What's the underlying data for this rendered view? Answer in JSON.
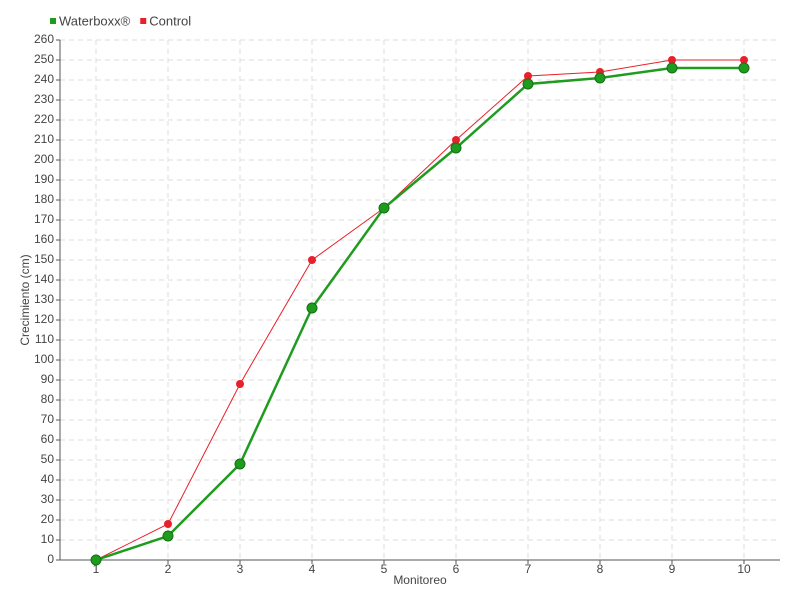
{
  "chart_data": {
    "type": "line",
    "x_label": "Monitoreo",
    "y_label": "Crecimiento (cm)",
    "x": [
      1,
      2,
      3,
      4,
      5,
      6,
      7,
      8,
      9,
      10
    ],
    "xlim": [
      0.5,
      10.5
    ],
    "xticks": [
      1,
      2,
      3,
      4,
      5,
      6,
      7,
      8,
      9,
      10
    ],
    "ylim": [
      0,
      260
    ],
    "yticks": [
      0,
      10,
      20,
      30,
      40,
      50,
      60,
      70,
      80,
      90,
      100,
      110,
      120,
      130,
      140,
      150,
      160,
      170,
      180,
      190,
      200,
      210,
      220,
      230,
      240,
      250,
      260
    ],
    "grid": true,
    "legend": "top-left",
    "series": [
      {
        "name": "Waterboxx®",
        "color": "#1f9c1f",
        "values": [
          0,
          12,
          48,
          126,
          176,
          206,
          238,
          241,
          246,
          246
        ]
      },
      {
        "name": "Control",
        "color": "#e8202a",
        "values": [
          0,
          18,
          88,
          150,
          176,
          210,
          242,
          244,
          250,
          250
        ]
      }
    ]
  }
}
